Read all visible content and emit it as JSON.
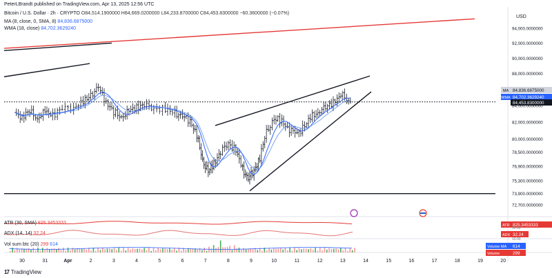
{
  "header": {
    "published_by": "PeterLBrandt published on TradingView.com, Apr 13, 2025 12:56 UTC",
    "symbol": "Bitcoin / U.S. Dollar · 2h · CRYPTO",
    "ohlc": "O84,514.1900000  H84,669.0200000  L84,233.8700000  C84,453.8300000  −60.3600000 (−0.07%)"
  },
  "legends": {
    "ma_label": "MA (8, close, 0, SMA, 8)",
    "ma_value": "84,836.6875000",
    "wma_label": "WMA (18, close)",
    "wma_value": "84,702.3629240",
    "atr_label": "ATR (30, SMA)",
    "atr_value": "825.3453333",
    "adx_label": "ADX (14, 14)",
    "adx_value": "32.24",
    "vol_label": "Vol sum btc (20)",
    "vol_value1": "299",
    "vol_value2": "614"
  },
  "currency": "USD",
  "footer": {
    "brand": "TradingView"
  },
  "colors": {
    "candle": "#131722",
    "ma": "#2962ff",
    "wma": "#5b8def",
    "resistance": "#e53935",
    "atr": "#e53935",
    "adx": "#e57373",
    "volume": "#ef9a9a",
    "volume_up": "#4caf50",
    "price_tag": "#131722",
    "atr_tag": "#e53935",
    "vol_tag_ma": "#2962ff",
    "vol_tag": "#e53935"
  },
  "chart_data": {
    "type": "candlestick",
    "x_labels": [
      "30",
      "31",
      "Apr",
      "2",
      "3",
      "4",
      "5",
      "6",
      "7",
      "8",
      "9",
      "10",
      "11",
      "12",
      "13",
      "14",
      "15",
      "16",
      "17",
      "18",
      "19",
      "20"
    ],
    "y_ticks": [
      "94,000.0000000",
      "92,000.0000000",
      "90,000.0000000",
      "88,000.0000000",
      "86,000.0000000",
      "84,000.0000000",
      "82,000.0000000",
      "80,000.0000000",
      "78,500.0000000",
      "76,900.0000000",
      "75,300.0000000",
      "73,900.0000000",
      "72,700.0000000"
    ],
    "y_scale": "log",
    "price_tags": [
      {
        "label": "MA",
        "value": "84,836.6875000"
      },
      {
        "label": "WMA",
        "value": "84,702.3629240"
      },
      {
        "label": "",
        "value": "84,453.8300000"
      }
    ],
    "last_close": 84453.83,
    "close_path": [
      [
        "30",
        83000
      ],
      [
        "30",
        82700
      ],
      [
        "30",
        83300
      ],
      [
        "31",
        82500
      ],
      [
        "31",
        83200
      ],
      [
        "31",
        82900
      ],
      [
        "Apr",
        83600
      ],
      [
        "Apr",
        83900
      ],
      [
        "2",
        84400
      ],
      [
        "2",
        85300
      ],
      [
        "2",
        86200
      ],
      [
        "3",
        84500
      ],
      [
        "3",
        83200
      ],
      [
        "3",
        82600
      ],
      [
        "4",
        83300
      ],
      [
        "4",
        83800
      ],
      [
        "4",
        84100
      ],
      [
        "5",
        83700
      ],
      [
        "5",
        83500
      ],
      [
        "6",
        83100
      ],
      [
        "6",
        82700
      ],
      [
        "6",
        82200
      ],
      [
        "7",
        80500
      ],
      [
        "7",
        77500
      ],
      [
        "7",
        76300
      ],
      [
        "7",
        77200
      ],
      [
        "8",
        78600
      ],
      [
        "8",
        79500
      ],
      [
        "8",
        78700
      ],
      [
        "9",
        76500
      ],
      [
        "9",
        75600
      ],
      [
        "9",
        76400
      ],
      [
        "9",
        77900
      ],
      [
        "10",
        80800
      ],
      [
        "10",
        82400
      ],
      [
        "10",
        82100
      ],
      [
        "11",
        81200
      ],
      [
        "11",
        80600
      ],
      [
        "11",
        81600
      ],
      [
        "12",
        82700
      ],
      [
        "12",
        83400
      ],
      [
        "12",
        83900
      ],
      [
        "13",
        84700
      ],
      [
        "13",
        85200
      ],
      [
        "13",
        84453.83
      ]
    ],
    "trendlines": [
      {
        "name": "resistance",
        "color": "red",
        "from": [
          "30",
          91300
        ],
        "to": [
          "16",
          95300
        ]
      },
      {
        "name": "upper-left",
        "color": "black",
        "from": [
          "30",
          91000
        ],
        "to": [
          "3",
          92000
        ]
      },
      {
        "name": "mid-left",
        "color": "black",
        "from": [
          "30",
          87600
        ],
        "to": [
          "2",
          89300
        ]
      },
      {
        "name": "wedge-upper",
        "color": "black",
        "from": [
          "7",
          81600
        ],
        "to": [
          "13",
          87700
        ]
      },
      {
        "name": "wedge-lower",
        "color": "black",
        "from": [
          "9",
          74200
        ],
        "to": [
          "14",
          85700
        ]
      },
      {
        "name": "support",
        "color": "black",
        "from": [
          "30",
          73900
        ],
        "to": [
          "16",
          73900
        ]
      },
      {
        "name": "last-close",
        "color": "black",
        "style": "dotted",
        "from": [
          "30",
          84453.83
        ],
        "to": [
          "20",
          84453.83
        ]
      }
    ],
    "indicators": {
      "atr": 825.3453333,
      "adx": 32.24,
      "adx_axis_ticks": [
        "50.00",
        "30.00",
        "10.00"
      ],
      "volume_ma": 614,
      "volume": 299
    }
  }
}
